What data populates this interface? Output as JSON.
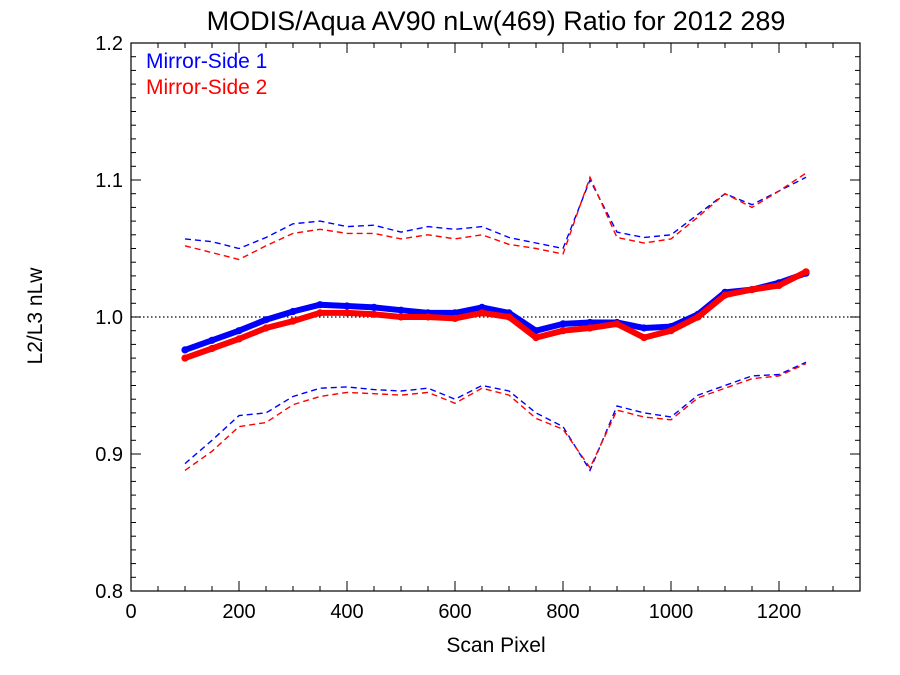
{
  "chart_data": {
    "type": "line",
    "title": "MODIS/Aqua AV90 nLw(469) Ratio for 2012 289",
    "xlabel": "Scan Pixel",
    "ylabel": "L2/L3 nLw",
    "xlim": [
      0,
      1350
    ],
    "ylim": [
      0.8,
      1.2
    ],
    "x_ticks": [
      0,
      200,
      400,
      600,
      800,
      1000,
      1200
    ],
    "x_tick_labels": [
      "0",
      "200",
      "400",
      "600",
      "800",
      "1000",
      "1200"
    ],
    "y_ticks": [
      0.8,
      0.9,
      1.0,
      1.1,
      1.2
    ],
    "y_tick_labels": [
      "0.8",
      "0.9",
      "1.0",
      "1.1",
      "1.2"
    ],
    "reference_line": {
      "y": 1.0,
      "style": "dotted",
      "color": "#000000"
    },
    "legend": {
      "position": "top-left",
      "entries": [
        "Mirror-Side 1",
        "Mirror-Side 2"
      ]
    },
    "grid": false,
    "series": [
      {
        "name": "Mirror-Side 1",
        "color": "#0000ff",
        "x": [
          100,
          150,
          200,
          250,
          300,
          350,
          400,
          450,
          500,
          550,
          600,
          650,
          700,
          750,
          800,
          850,
          900,
          950,
          1000,
          1050,
          1100,
          1150,
          1200,
          1250
        ],
        "mean": [
          0.976,
          0.983,
          0.99,
          0.998,
          1.004,
          1.009,
          1.008,
          1.007,
          1.005,
          1.003,
          1.003,
          1.007,
          1.003,
          0.99,
          0.995,
          0.996,
          0.996,
          0.992,
          0.993,
          1.002,
          1.018,
          1.02,
          1.025,
          1.032
        ],
        "upper": [
          1.057,
          1.055,
          1.05,
          1.058,
          1.068,
          1.07,
          1.066,
          1.067,
          1.062,
          1.066,
          1.064,
          1.066,
          1.058,
          1.054,
          1.05,
          1.1,
          1.062,
          1.058,
          1.06,
          1.075,
          1.09,
          1.082,
          1.092,
          1.102
        ],
        "lower": [
          0.893,
          0.91,
          0.928,
          0.93,
          0.942,
          0.948,
          0.949,
          0.947,
          0.946,
          0.948,
          0.94,
          0.95,
          0.946,
          0.93,
          0.92,
          0.888,
          0.935,
          0.93,
          0.927,
          0.943,
          0.95,
          0.957,
          0.958,
          0.967
        ]
      },
      {
        "name": "Mirror-Side 2",
        "color": "#ff0000",
        "x": [
          100,
          150,
          200,
          250,
          300,
          350,
          400,
          450,
          500,
          550,
          600,
          650,
          700,
          750,
          800,
          850,
          900,
          950,
          1000,
          1050,
          1100,
          1150,
          1200,
          1250
        ],
        "mean": [
          0.97,
          0.977,
          0.984,
          0.992,
          0.997,
          1.003,
          1.003,
          1.002,
          1.0,
          1.0,
          0.999,
          1.003,
          1.0,
          0.985,
          0.99,
          0.992,
          0.995,
          0.985,
          0.99,
          1.0,
          1.016,
          1.02,
          1.023,
          1.033
        ],
        "upper": [
          1.052,
          1.047,
          1.042,
          1.052,
          1.061,
          1.064,
          1.061,
          1.061,
          1.057,
          1.06,
          1.057,
          1.06,
          1.053,
          1.05,
          1.046,
          1.102,
          1.058,
          1.054,
          1.057,
          1.073,
          1.09,
          1.08,
          1.092,
          1.105
        ],
        "lower": [
          0.888,
          0.902,
          0.92,
          0.923,
          0.936,
          0.942,
          0.945,
          0.944,
          0.943,
          0.945,
          0.937,
          0.948,
          0.943,
          0.926,
          0.918,
          0.89,
          0.932,
          0.927,
          0.925,
          0.941,
          0.948,
          0.955,
          0.957,
          0.966
        ]
      }
    ]
  }
}
